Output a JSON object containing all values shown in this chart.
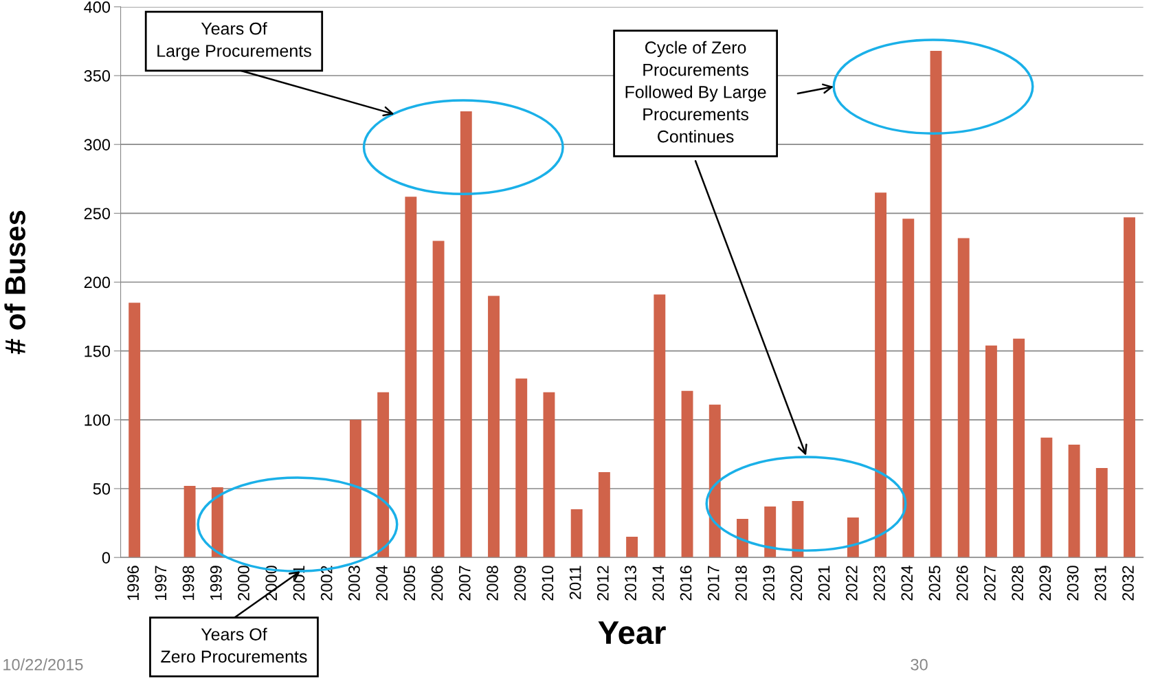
{
  "chart_data": {
    "type": "bar",
    "xlabel": "Year",
    "ylabel": "# of Buses",
    "categories": [
      "1996",
      "1997",
      "1998",
      "1999",
      "2000",
      "2000",
      "2001",
      "2002",
      "2003",
      "2004",
      "2005",
      "2006",
      "2007",
      "2008",
      "2009",
      "2010",
      "2011",
      "2012",
      "2013",
      "2014",
      "2016",
      "2017",
      "2018",
      "2019",
      "2020",
      "2021",
      "2022",
      "2023",
      "2024",
      "2025",
      "2026",
      "2027",
      "2028",
      "2029",
      "2030",
      "2031",
      "2032"
    ],
    "values": [
      185,
      0,
      52,
      51,
      0,
      0,
      0,
      0,
      100,
      120,
      262,
      230,
      324,
      190,
      130,
      120,
      35,
      62,
      15,
      191,
      121,
      111,
      28,
      37,
      41,
      0,
      29,
      265,
      246,
      368,
      232,
      154,
      159,
      87,
      82,
      65,
      247
    ],
    "color": "#d0634a",
    "ylim": [
      0,
      400
    ],
    "yticks": [
      0,
      50,
      100,
      150,
      200,
      250,
      300,
      350,
      400
    ],
    "grid": "y",
    "legend": false,
    "annotations": [
      "Years Of\nLarge Procurements",
      "Years Of\nZero Procurements",
      "Cycle of Zero\nProcurements\nFollowed By Large\nProcurements\nContinues",
      "10/22/2015",
      "30"
    ]
  }
}
